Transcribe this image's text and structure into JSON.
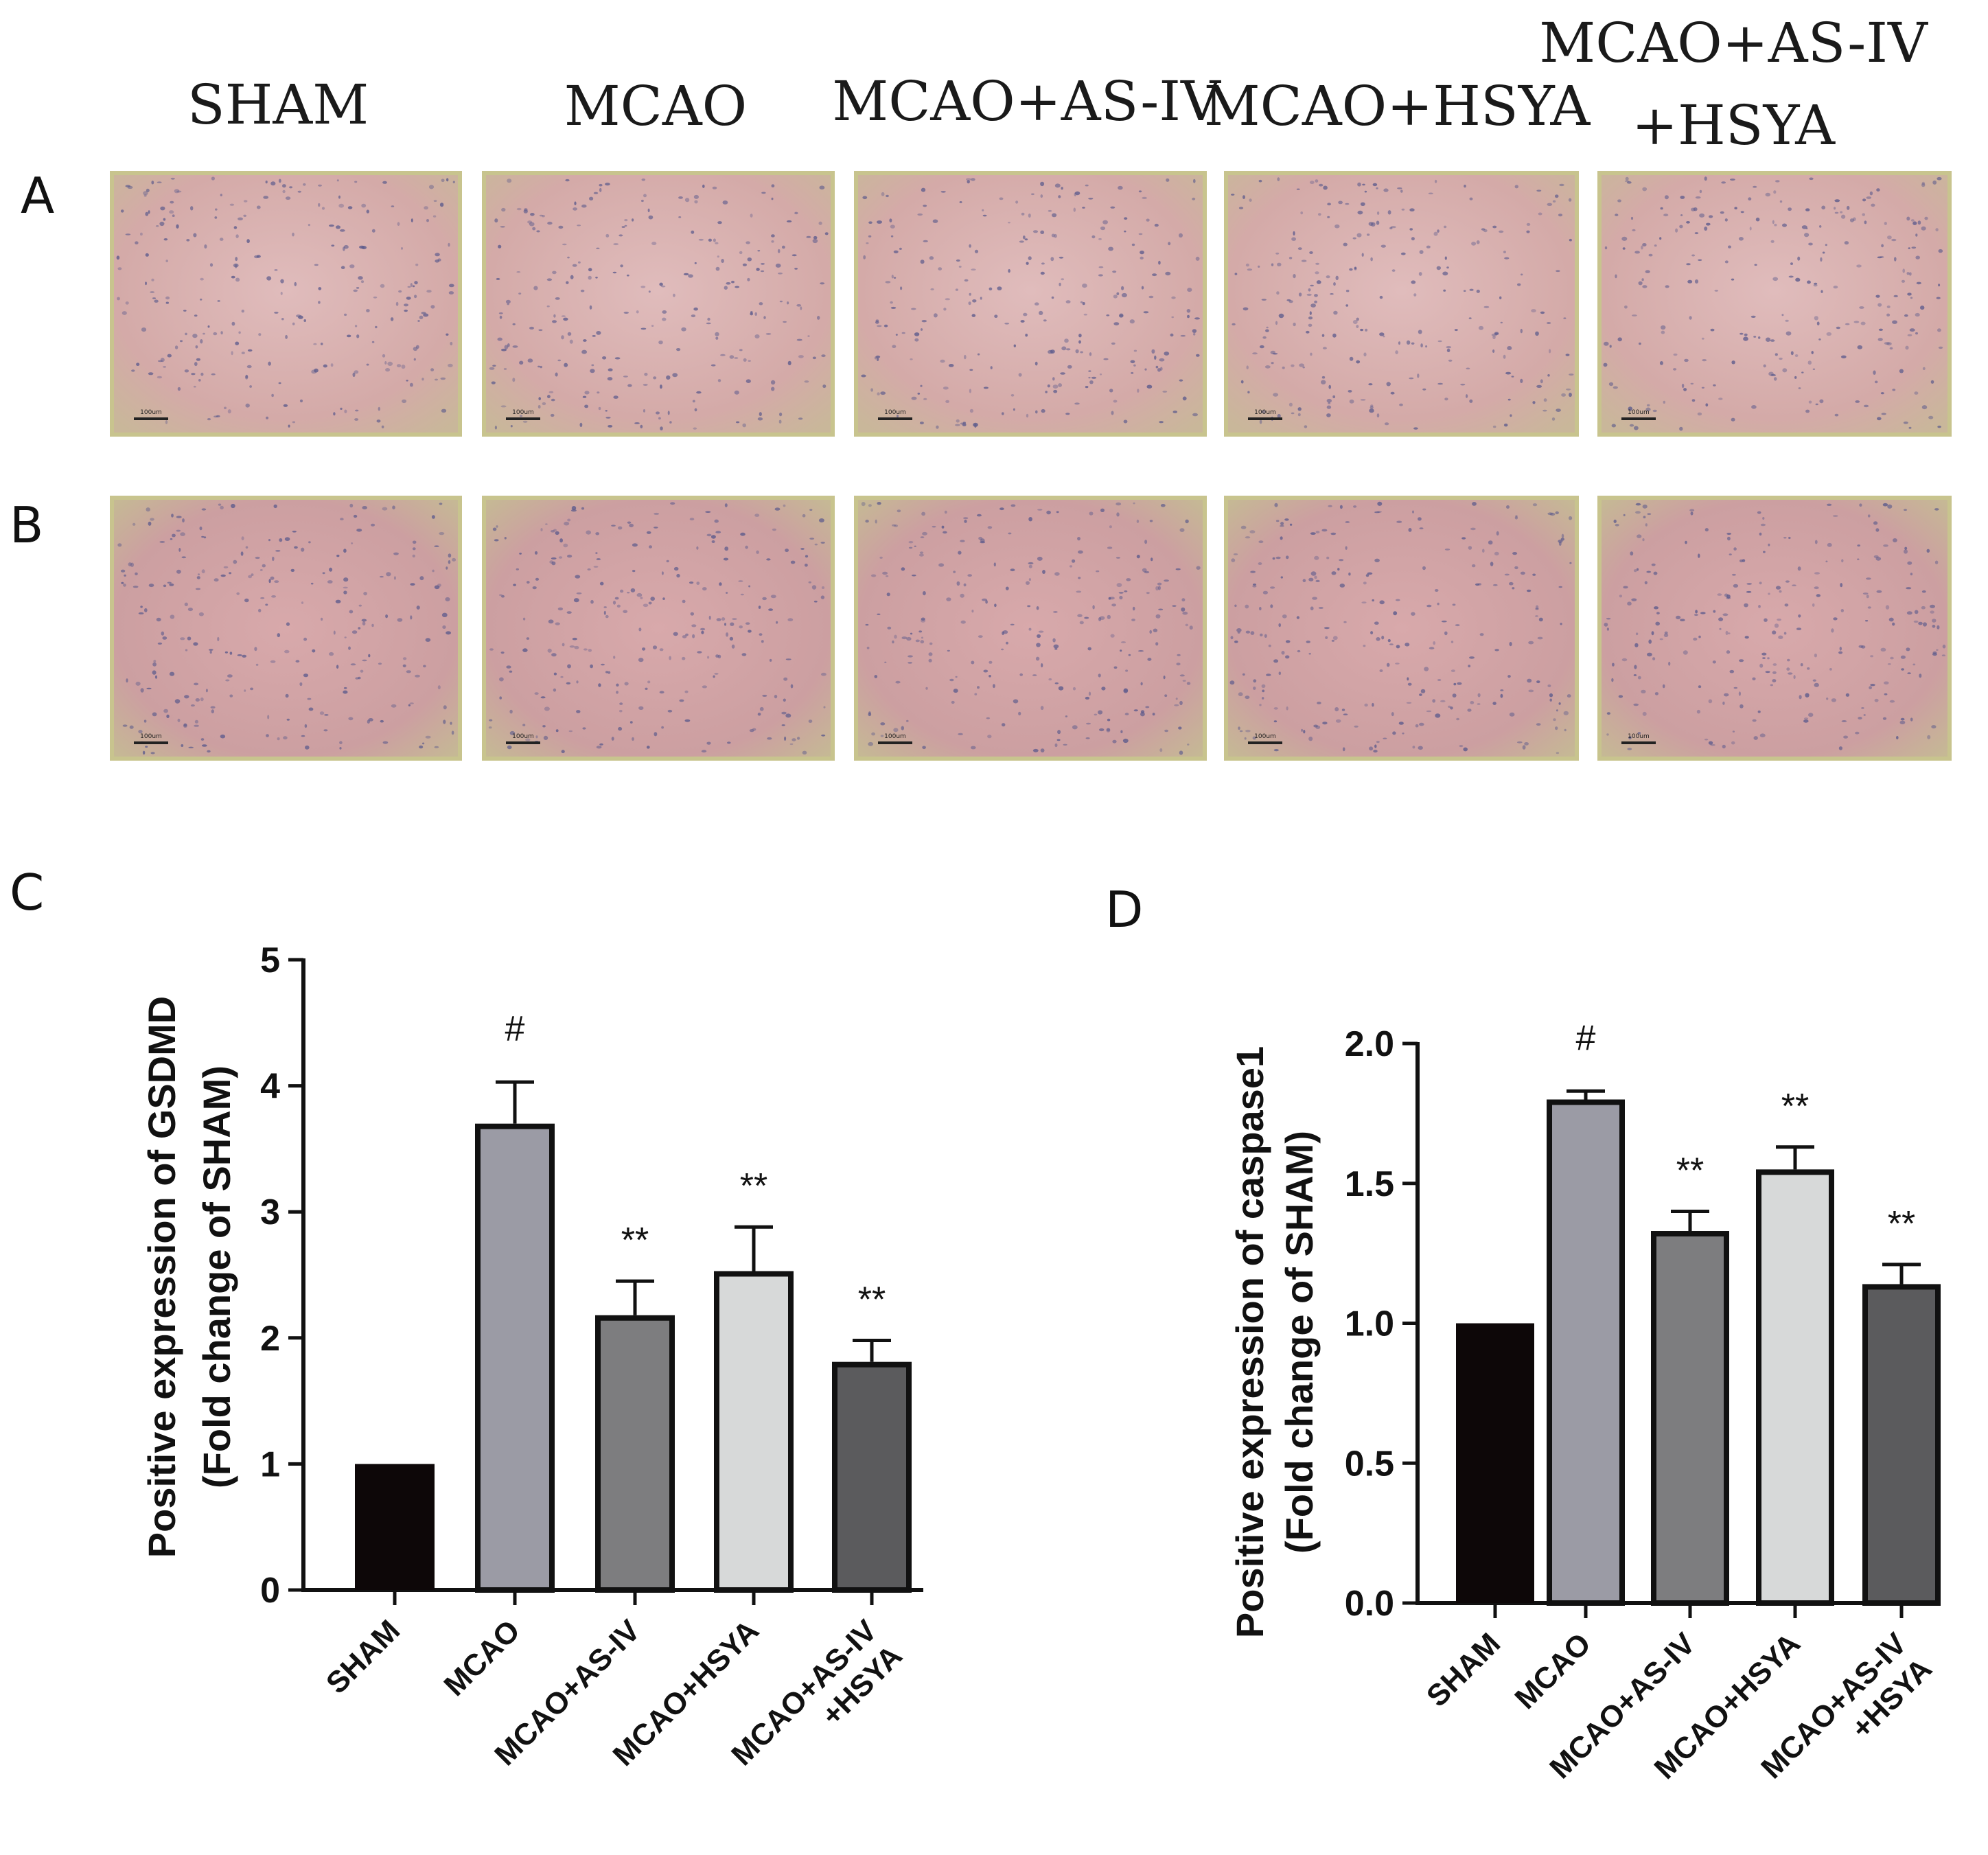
{
  "group_labels": [
    "SHAM",
    "MCAO",
    "MCAO+AS-IV",
    "MCAO+HSYA",
    "MCAO+AS-IV",
    "+HSYA"
  ],
  "panel_labels": [
    "A",
    "B",
    "C",
    "D"
  ],
  "chart_data": [
    {
      "type": "bar",
      "panel": "C",
      "ylabel_line1": "Positive expression  of GSDMD",
      "ylabel_line2": "(Fold change of SHAM)",
      "ylim": [
        0,
        5
      ],
      "yticks": [
        "0",
        "1",
        "2",
        "3",
        "4",
        "5"
      ],
      "categories": [
        "SHAM",
        "MCAO",
        "MCAO+AS-IV",
        "MCAO+HSYA",
        "MCAO+AS-IV\n+HSYA"
      ],
      "values": [
        1.0,
        3.7,
        2.18,
        2.53,
        1.81
      ],
      "errors": [
        0,
        0.33,
        0.27,
        0.35,
        0.17
      ],
      "significance": [
        "",
        "#",
        "**",
        "**",
        "**"
      ],
      "colors": [
        "#0d0708",
        "#9b9ba5",
        "#7d7d7f",
        "#d7d9d9",
        "#5b5b5d"
      ]
    },
    {
      "type": "bar",
      "panel": "D",
      "ylabel_line1": "Positive expression  of caspase1",
      "ylabel_line2": "(Fold change of SHAM)",
      "ylim": [
        0,
        2.0
      ],
      "yticks": [
        "0.0",
        "0.5",
        "1.0",
        "1.5",
        "2.0"
      ],
      "categories": [
        "SHAM",
        "MCAO",
        "MCAO+AS-IV",
        "MCAO+HSYA",
        "MCAO+AS-IV\n+HSYA"
      ],
      "values": [
        1.0,
        1.8,
        1.33,
        1.55,
        1.14
      ],
      "errors": [
        0,
        0.03,
        0.07,
        0.08,
        0.07
      ],
      "significance": [
        "",
        "#",
        "**",
        "**",
        "**"
      ],
      "colors": [
        "#0d0708",
        "#9b9ba5",
        "#7d7d7f",
        "#d7d9d9",
        "#5b5b5d"
      ]
    }
  ],
  "colors": {
    "tissue_base": "#d9b2b0",
    "tissue_dark": "#c69c9c",
    "tissue_border": "#c8c48e",
    "nucleus": "#5b5a8c"
  },
  "micrograph_scale_label": "100um"
}
